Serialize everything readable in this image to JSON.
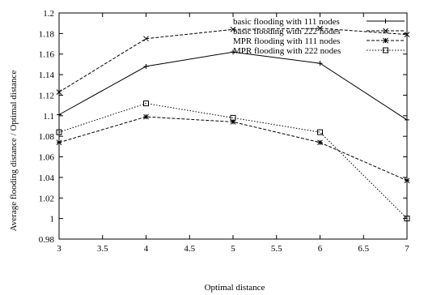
{
  "chart_data": {
    "type": "line",
    "xlabel": "Optimal distance",
    "ylabel": "Average flooding distance / Optimal distance",
    "xlim": [
      3,
      7
    ],
    "ylim": [
      0.98,
      1.2
    ],
    "xticks": [
      "3",
      "3.5",
      "4",
      "4.5",
      "5",
      "5.5",
      "6",
      "6.5",
      "7"
    ],
    "xtick_values": [
      3,
      3.5,
      4,
      4.5,
      5,
      5.5,
      6,
      6.5,
      7
    ],
    "yticks": [
      "0.98",
      "1",
      "1.02",
      "1.04",
      "1.06",
      "1.08",
      "1.1",
      "1.12",
      "1.14",
      "1.16",
      "1.18",
      "1.2"
    ],
    "ytick_values": [
      0.98,
      1.0,
      1.02,
      1.04,
      1.06,
      1.08,
      1.1,
      1.12,
      1.14,
      1.16,
      1.18,
      1.2
    ],
    "grid": false,
    "legend_position": "top-right",
    "series": [
      {
        "name": "basic flooding with 111 nodes",
        "marker": "plus",
        "line": "solid",
        "x": [
          3,
          4,
          5,
          6,
          7
        ],
        "y": [
          1.101,
          1.148,
          1.162,
          1.151,
          1.096
        ]
      },
      {
        "name": "basic flooding with 222 nodes",
        "marker": "cross",
        "line": "dashed",
        "x": [
          3,
          4,
          5,
          6,
          7
        ],
        "y": [
          1.123,
          1.175,
          1.184,
          1.185,
          1.179
        ]
      },
      {
        "name": "MPR flooding with 111 nodes",
        "marker": "star",
        "line": "dashed",
        "x": [
          3,
          4,
          5,
          6,
          7
        ],
        "y": [
          1.074,
          1.099,
          1.094,
          1.074,
          1.037
        ]
      },
      {
        "name": "MPR flooding with 222 nodes",
        "marker": "square",
        "line": "dotted",
        "x": [
          3,
          4,
          5,
          6,
          7
        ],
        "y": [
          1.084,
          1.112,
          1.098,
          1.084,
          1.0
        ]
      }
    ]
  }
}
